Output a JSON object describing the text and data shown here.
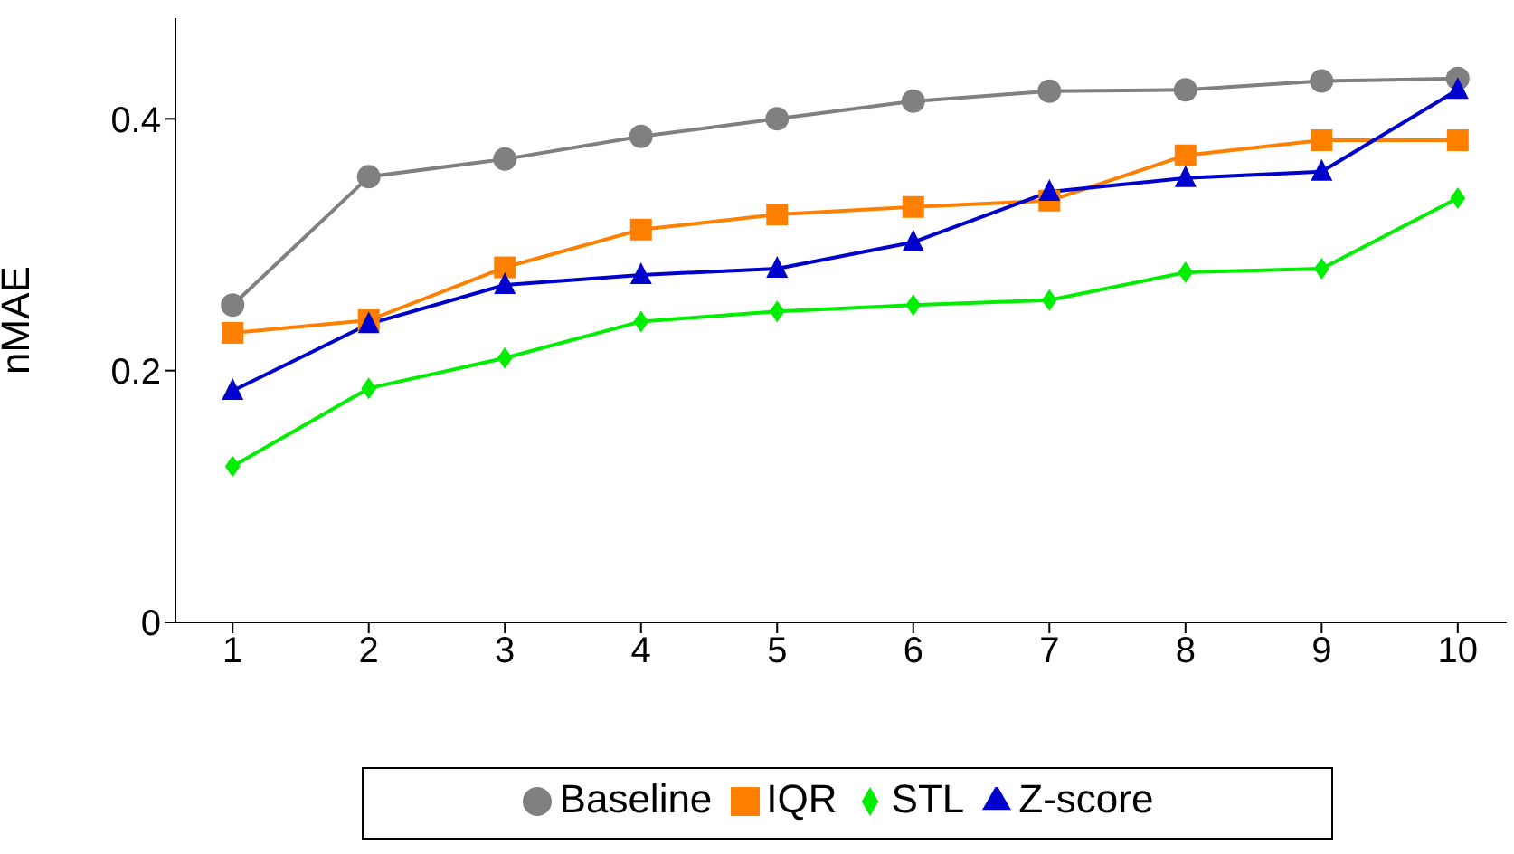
{
  "chart_data": {
    "type": "line",
    "ylabel": "nMAE",
    "x": [
      1,
      2,
      3,
      4,
      5,
      6,
      7,
      8,
      9,
      10
    ],
    "xlim": [
      0.58,
      10.36
    ],
    "xticks": [
      1,
      2,
      3,
      4,
      5,
      6,
      7,
      8,
      9,
      10
    ],
    "ylim": [
      0,
      0.48
    ],
    "yticks": [
      0,
      0.2,
      0.4
    ],
    "grid": false,
    "legend": "bottom",
    "line_style": "solid",
    "series": [
      {
        "name": "Baseline",
        "color": "#808080",
        "marker": "circle",
        "values": [
          0.252,
          0.354,
          0.368,
          0.386,
          0.4,
          0.414,
          0.422,
          0.423,
          0.43,
          0.432
        ]
      },
      {
        "name": "IQR",
        "color": "#ff8000",
        "marker": "square",
        "values": [
          0.23,
          0.24,
          0.282,
          0.312,
          0.324,
          0.33,
          0.335,
          0.371,
          0.383,
          0.383
        ]
      },
      {
        "name": "Z-score",
        "color": "#0000cc",
        "marker": "triangle",
        "values": [
          0.184,
          0.237,
          0.268,
          0.276,
          0.281,
          0.302,
          0.342,
          0.353,
          0.358,
          0.423
        ]
      },
      {
        "name": "STL",
        "color": "#00ee00",
        "marker": "diamond",
        "values": [
          0.124,
          0.186,
          0.21,
          0.239,
          0.247,
          0.252,
          0.256,
          0.278,
          0.281,
          0.337
        ]
      }
    ]
  }
}
